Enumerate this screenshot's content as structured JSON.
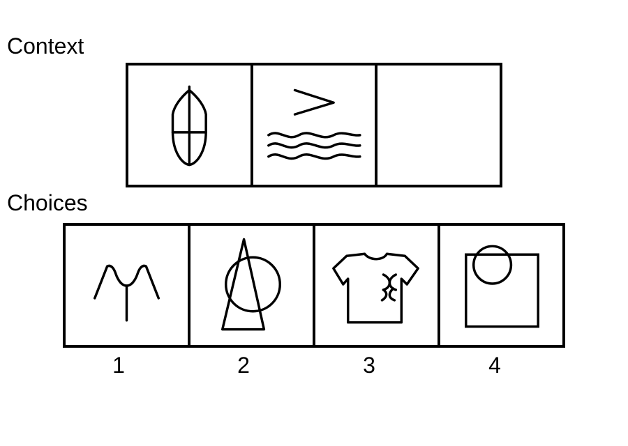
{
  "context": {
    "label": "Context",
    "panels": [
      {
        "icon": "boat-icon"
      },
      {
        "icon": "waves-icon"
      },
      {
        "icon": "empty-panel"
      }
    ]
  },
  "choices": {
    "label": "Choices",
    "options": [
      {
        "number": "1",
        "icon": "coat-hanger-icon"
      },
      {
        "number": "2",
        "icon": "triangle-circle-icon"
      },
      {
        "number": "3",
        "icon": "tshirt-icon"
      },
      {
        "number": "4",
        "icon": "square-circle-icon"
      }
    ]
  },
  "colors": {
    "stroke": "#000000",
    "background": "#ffffff"
  }
}
